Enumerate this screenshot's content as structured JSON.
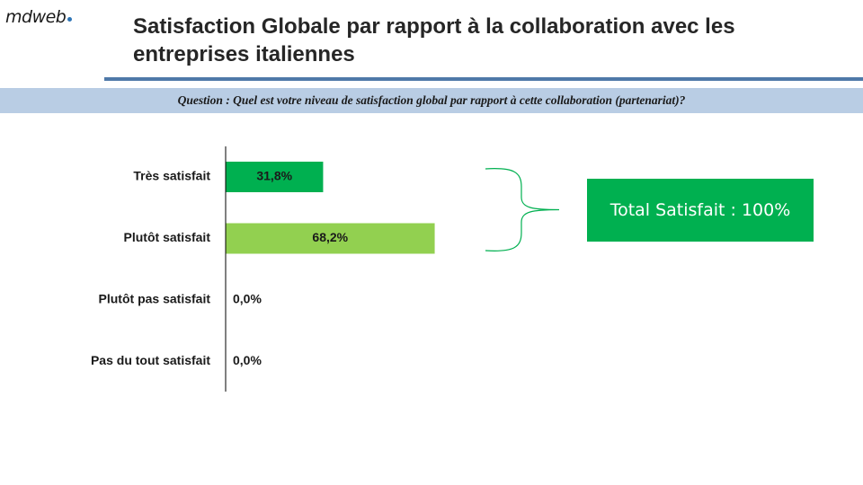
{
  "logo": {
    "text": "mdweb"
  },
  "title": "Satisfaction Globale par rapport à la collaboration avec les entreprises italiennes",
  "question": "Question : Quel est votre niveau de satisfaction global par rapport à cette collaboration (partenariat)?",
  "summary": {
    "text": "Total Satisfait : 100%",
    "color": "#00b050"
  },
  "colors": {
    "title_rule": "#4f79a8",
    "question_bar": "#b9cde4"
  },
  "chart_data": {
    "type": "bar",
    "orientation": "horizontal",
    "categories": [
      "Très satisfait",
      "Plutôt satisfait",
      "Plutôt pas satisfait",
      "Pas du tout satisfait"
    ],
    "values": [
      31.8,
      68.2,
      0.0,
      0.0
    ],
    "value_labels": [
      "31,8%",
      "68,2%",
      "0,0%",
      "0,0%"
    ],
    "bar_colors": [
      "#00b050",
      "#92d050",
      "#92d050",
      "#92d050"
    ],
    "xlim": [
      0,
      100
    ],
    "grid": false,
    "legend": "none",
    "annotation": {
      "type": "brace",
      "covers": [
        "Très satisfait",
        "Plutôt satisfait"
      ],
      "color": "#00b050"
    }
  }
}
